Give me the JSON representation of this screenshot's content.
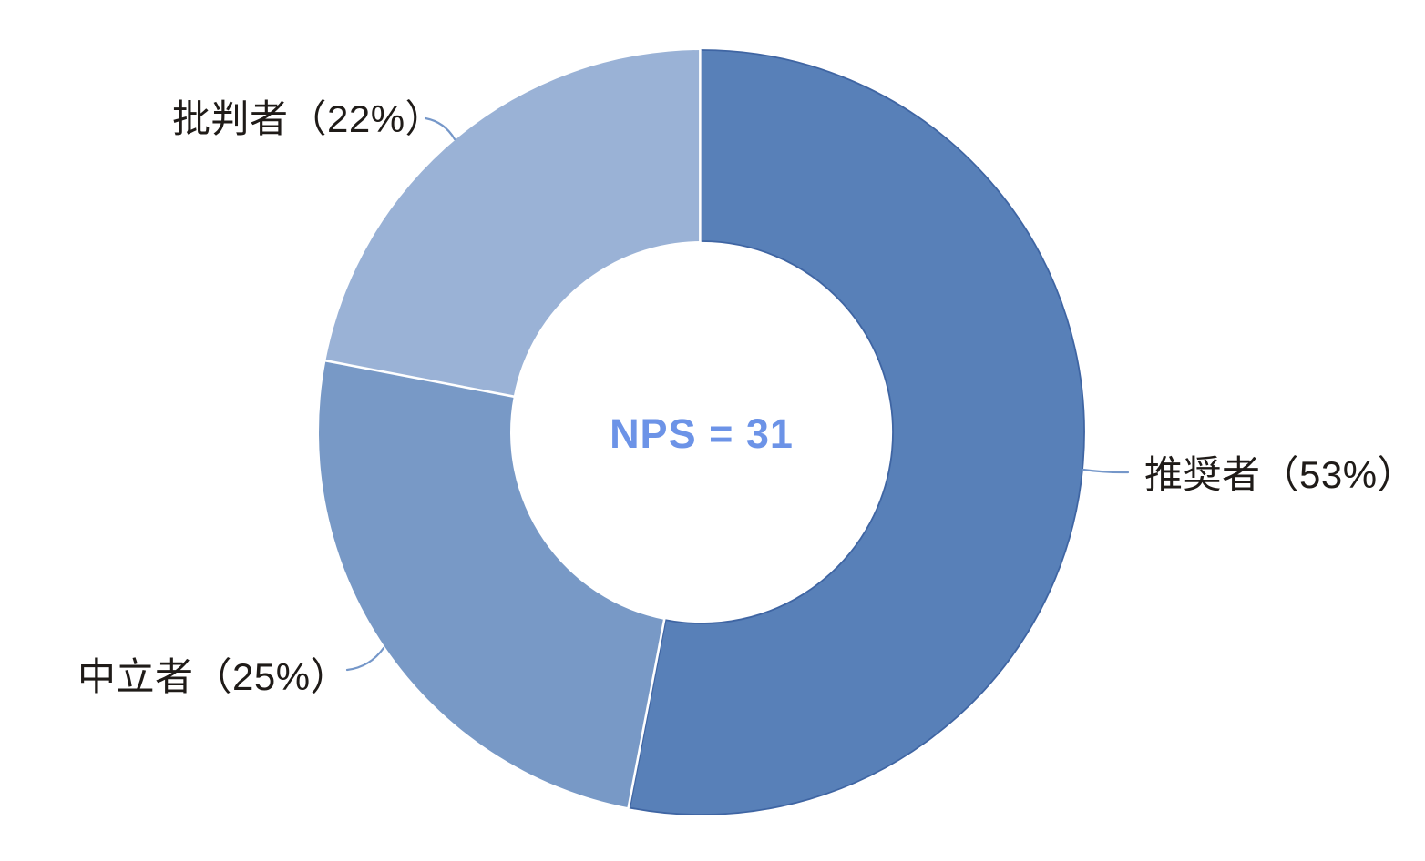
{
  "colors": {
    "background": "#FFFFFF",
    "center_label_text": "#6C93E7",
    "slice_label_text": "#1F1B18",
    "leader_line": "#7597C9",
    "separator": "#FFFFFF"
  },
  "chart_data": {
    "type": "pie",
    "subtype": "donut",
    "title": "",
    "center_label": "NPS = 31",
    "nps_score": 31,
    "direction": "clockwise",
    "start_angle_deg": 0,
    "inner_radius_ratio": 0.5,
    "legend_position": "outside-labels",
    "segments": [
      {
        "name": "推奨者",
        "percent": 53,
        "display": "推奨者（53%）",
        "color": "#5880B8",
        "border_color": "#3F65A3"
      },
      {
        "name": "中立者",
        "percent": 25,
        "display": "中立者（25%）",
        "color": "#7899C6"
      },
      {
        "name": "批判者",
        "percent": 22,
        "display": "批判者（22%）",
        "color": "#9AB2D6"
      }
    ]
  }
}
